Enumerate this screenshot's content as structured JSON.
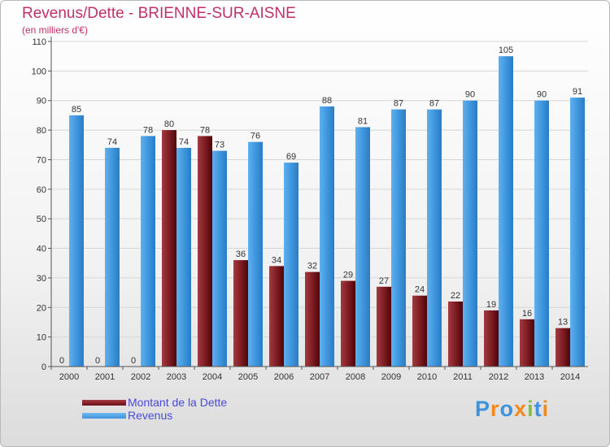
{
  "header": {
    "title": "Revenus/Dette - BRIENNE-SUR-AISNE",
    "subtitle": "(en milliers d'€)"
  },
  "legend": {
    "items": [
      {
        "label": "Montant de la Dette",
        "color": "#6e0f16"
      },
      {
        "label": "Revenus",
        "color": "#3d94db"
      }
    ]
  },
  "brand": {
    "letters": [
      {
        "ch": "P",
        "color": "#3d94db"
      },
      {
        "ch": "r",
        "color": "#f08a1c"
      },
      {
        "ch": "o",
        "color": "#3d94db"
      },
      {
        "ch": "x",
        "color": "#f08a1c"
      },
      {
        "ch": "i",
        "color": "#7cc242"
      },
      {
        "ch": "t",
        "color": "#3d94db"
      },
      {
        "ch": "i",
        "color": "#f08a1c"
      }
    ]
  },
  "chart_data": {
    "type": "bar",
    "title": "Revenus/Dette - BRIENNE-SUR-AISNE",
    "subtitle": "(en milliers d'€)",
    "categories": [
      "2000",
      "2001",
      "2002",
      "2003",
      "2004",
      "2005",
      "2006",
      "2007",
      "2008",
      "2009",
      "2010",
      "2011",
      "2012",
      "2013",
      "2014"
    ],
    "series": [
      {
        "name": "Montant de la Dette",
        "color": "#6e0f16",
        "values": [
          0,
          0,
          0,
          80,
          78,
          36,
          34,
          32,
          29,
          27,
          24,
          22,
          19,
          16,
          13
        ]
      },
      {
        "name": "Revenus",
        "color": "#3d94db",
        "values": [
          85,
          74,
          78,
          74,
          73,
          76,
          69,
          88,
          81,
          87,
          87,
          90,
          105,
          90,
          91
        ]
      }
    ],
    "ylim": [
      0,
      110
    ],
    "yticks": [
      0,
      10,
      20,
      30,
      40,
      50,
      60,
      70,
      80,
      90,
      100,
      110
    ],
    "grid": true,
    "legend_position": "bottom-left"
  }
}
